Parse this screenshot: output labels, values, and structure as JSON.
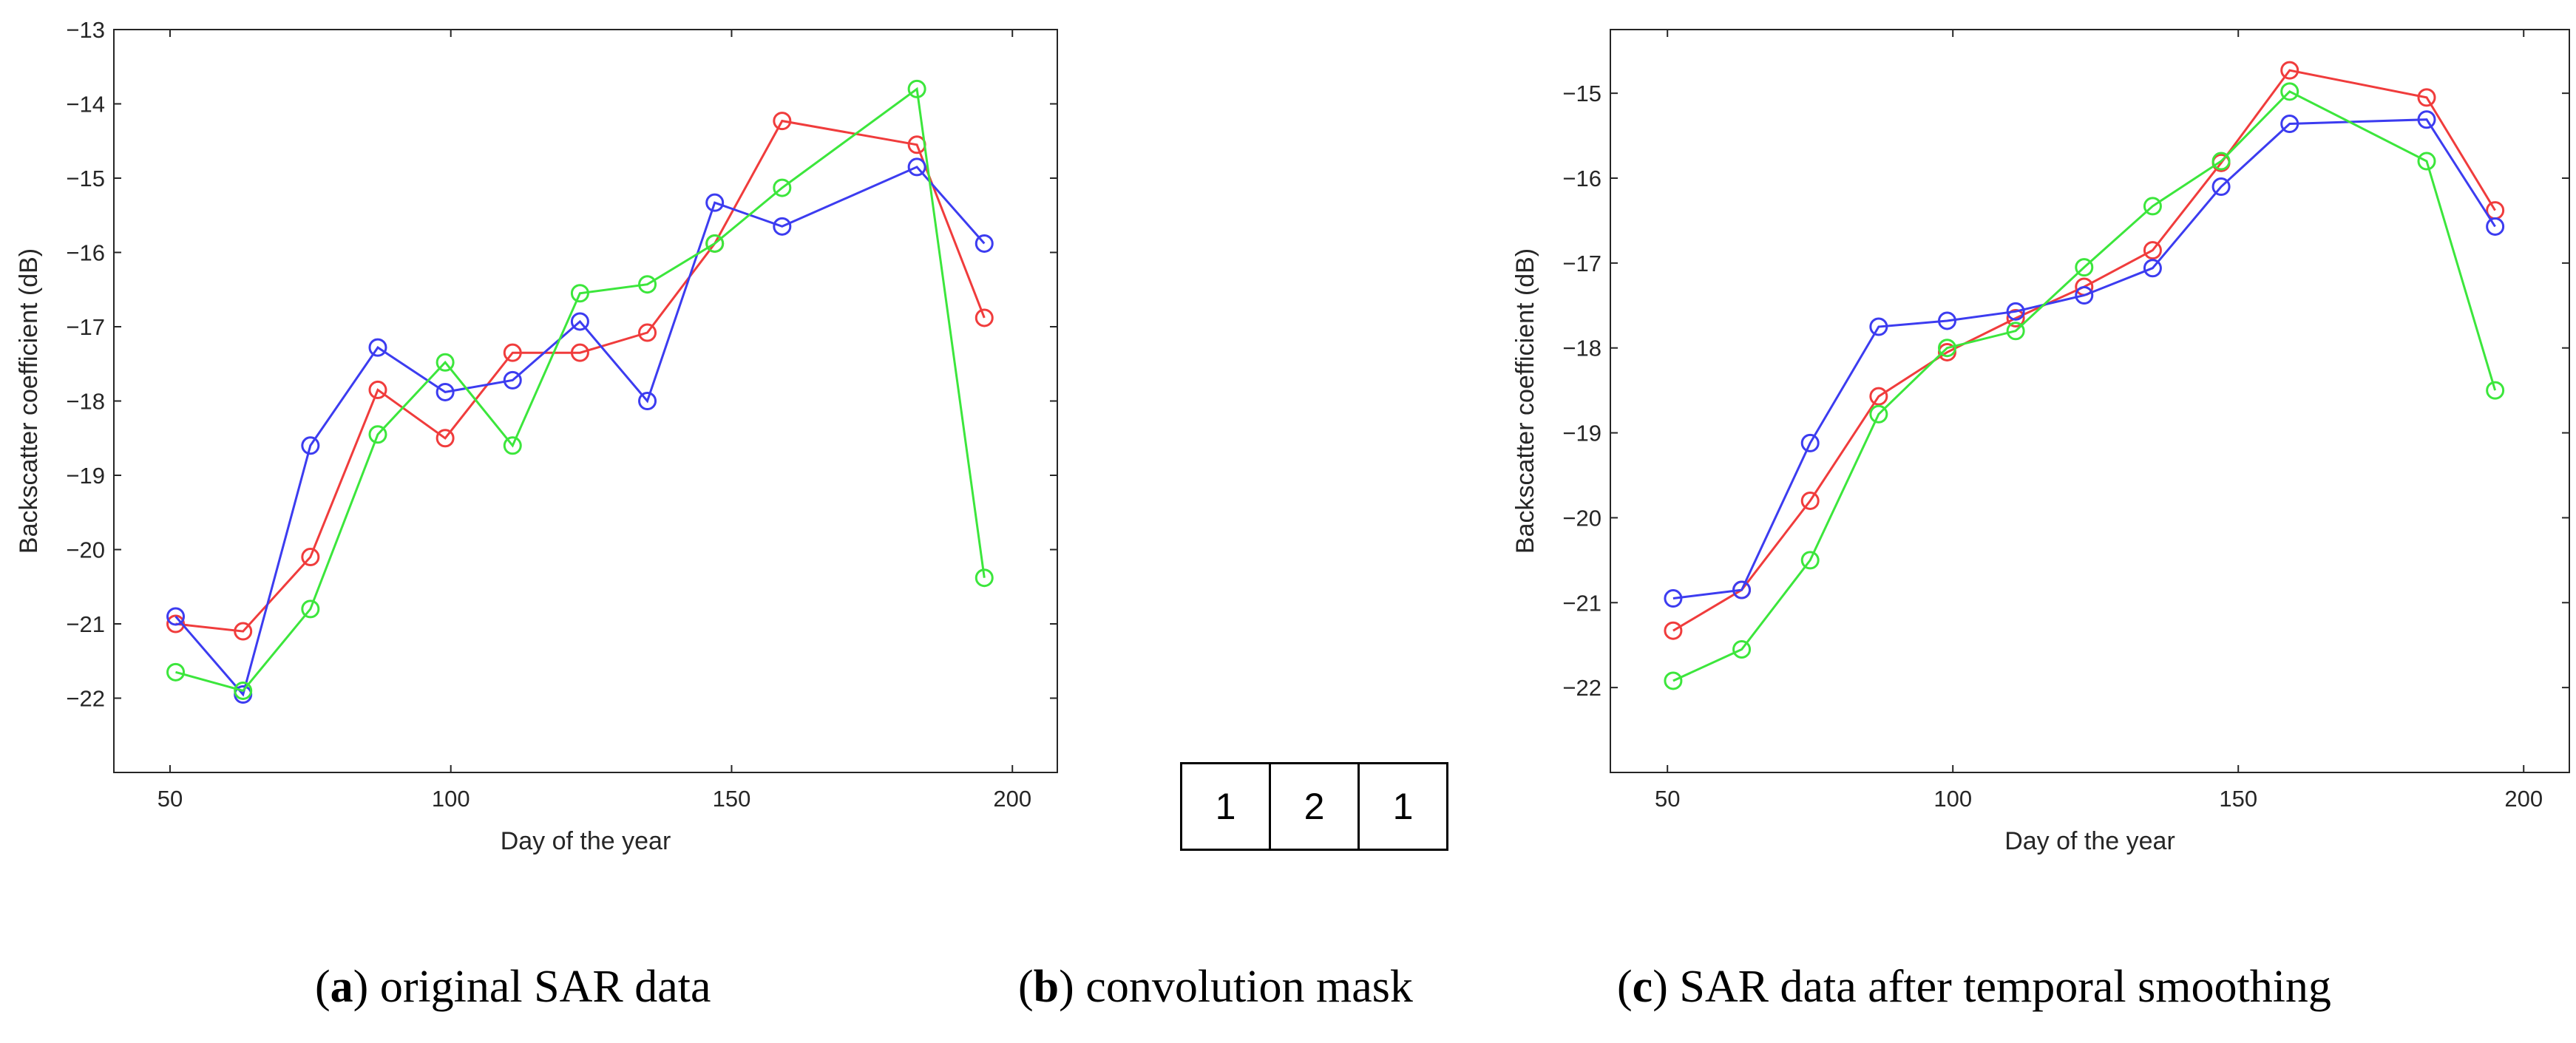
{
  "chart_data": [
    {
      "type": "line",
      "id": "a",
      "xlabel": "Day of the year",
      "ylabel": "Backscatter coefficient (dB)",
      "xlim": [
        40,
        208
      ],
      "ylim": [
        -23,
        -13
      ],
      "xticks": [
        50,
        100,
        150,
        200
      ],
      "yticks": [
        -22,
        -21,
        -20,
        -19,
        -18,
        -17,
        -16,
        -15,
        -14,
        -13
      ],
      "ytick_labels": [
        "−22",
        "−21",
        "−20",
        "−19",
        "−18",
        "−17",
        "−16",
        "−15",
        "−14",
        "−13"
      ],
      "x": [
        51,
        63,
        75,
        87,
        99,
        111,
        123,
        135,
        147,
        159,
        183,
        195
      ],
      "series": [
        {
          "name": "red",
          "color": "#f03c3c",
          "values": [
            -21.0,
            -21.1,
            -20.1,
            -17.85,
            -18.5,
            -17.35,
            -17.35,
            -17.08,
            -15.88,
            -14.23,
            -14.55,
            -16.88
          ]
        },
        {
          "name": "blue",
          "color": "#3c3cf0",
          "values": [
            -20.9,
            -21.95,
            -18.6,
            -17.28,
            -17.88,
            -17.72,
            -16.93,
            -18.0,
            -15.33,
            -15.65,
            -14.85,
            -15.88
          ]
        },
        {
          "name": "green",
          "color": "#3ce63c",
          "values": [
            -21.65,
            -21.9,
            -20.8,
            -18.45,
            -17.48,
            -18.6,
            -16.55,
            -16.43,
            -15.88,
            -15.13,
            -13.8,
            -20.38
          ]
        }
      ]
    },
    {
      "type": "line",
      "id": "c",
      "xlabel": "Day of the year",
      "ylabel": "Backscatter coefficient (dB)",
      "xlim": [
        40,
        208
      ],
      "ylim": [
        -23,
        -14.25
      ],
      "xticks": [
        50,
        100,
        150,
        200
      ],
      "yticks": [
        -22,
        -21,
        -20,
        -19,
        -18,
        -17,
        -16,
        -15
      ],
      "ytick_labels": [
        "−22",
        "−21",
        "−20",
        "−19",
        "−18",
        "−17",
        "−16",
        "−15"
      ],
      "x": [
        51,
        63,
        75,
        87,
        99,
        111,
        123,
        135,
        147,
        159,
        183,
        195
      ],
      "series": [
        {
          "name": "red",
          "color": "#f03c3c",
          "values": [
            -21.33,
            -20.85,
            -19.8,
            -18.57,
            -18.05,
            -17.65,
            -17.28,
            -16.85,
            -15.82,
            -14.73,
            -15.05,
            -16.38
          ]
        },
        {
          "name": "blue",
          "color": "#3c3cf0",
          "values": [
            -20.95,
            -20.85,
            -19.12,
            -17.75,
            -17.68,
            -17.57,
            -17.38,
            -17.06,
            -16.1,
            -15.36,
            -15.31,
            -16.57
          ]
        },
        {
          "name": "green",
          "color": "#3ce63c",
          "values": [
            -21.92,
            -21.55,
            -20.5,
            -18.78,
            -18.0,
            -17.8,
            -17.05,
            -16.33,
            -15.8,
            -14.98,
            -15.8,
            -18.5
          ]
        }
      ]
    }
  ],
  "mask": {
    "cells": [
      "1",
      "2",
      "1"
    ]
  },
  "captions": {
    "a": {
      "letter": "a",
      "text": " original SAR data"
    },
    "b": {
      "letter": "b",
      "text": " convolution mask"
    },
    "c": {
      "letter": "c",
      "text": " SAR data after temporal smoothing"
    }
  }
}
